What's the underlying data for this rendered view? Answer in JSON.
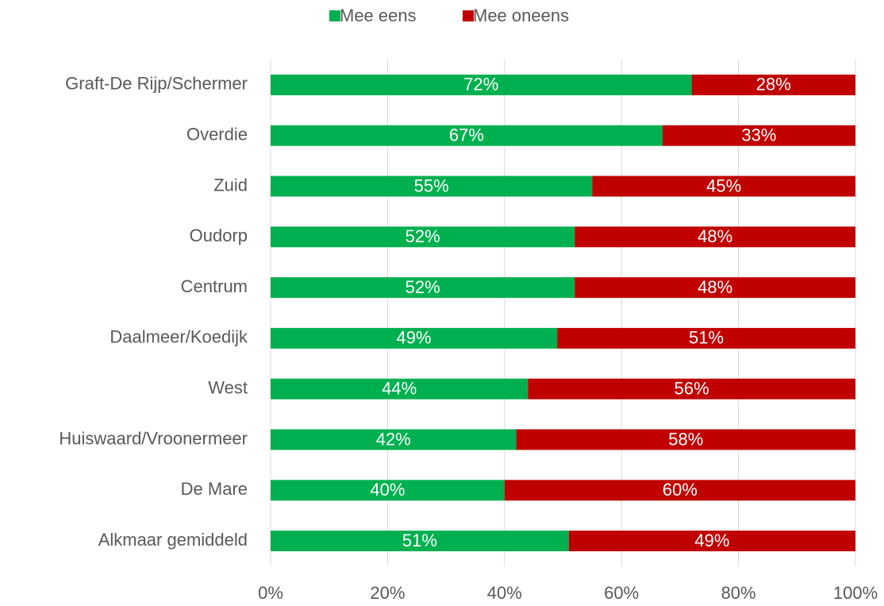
{
  "chart_data": {
    "type": "stacked_bar_horizontal",
    "categories": [
      "Graft-De Rijp/Schermer",
      "Overdie",
      "Zuid",
      "Oudorp",
      "Centrum",
      "Daalmeer/Koedijk",
      "West",
      "Huiswaard/Vroonermeer",
      "De Mare",
      "Alkmaar gemiddeld"
    ],
    "series": [
      {
        "name": "Mee eens",
        "color": "#00b050",
        "values": [
          72,
          67,
          55,
          52,
          52,
          49,
          44,
          42,
          40,
          51
        ],
        "value_labels": [
          "72%",
          "67%",
          "55%",
          "52%",
          "52%",
          "49%",
          "44%",
          "42%",
          "40%",
          "51%"
        ]
      },
      {
        "name": "Mee oneens",
        "color": "#c00000",
        "values": [
          28,
          33,
          45,
          48,
          48,
          51,
          56,
          58,
          60,
          49
        ],
        "value_labels": [
          "28%",
          "33%",
          "45%",
          "48%",
          "48%",
          "51%",
          "56%",
          "58%",
          "60%",
          "49%"
        ]
      }
    ],
    "xlim": [
      0,
      100
    ],
    "xticks": [
      {
        "value": 0,
        "label": "0%"
      },
      {
        "value": 20,
        "label": "20%"
      },
      {
        "value": 40,
        "label": "40%"
      },
      {
        "value": 60,
        "label": "60%"
      },
      {
        "value": 80,
        "label": "80%"
      },
      {
        "value": 100,
        "label": "100%"
      }
    ],
    "grid": true,
    "legend": "top"
  }
}
